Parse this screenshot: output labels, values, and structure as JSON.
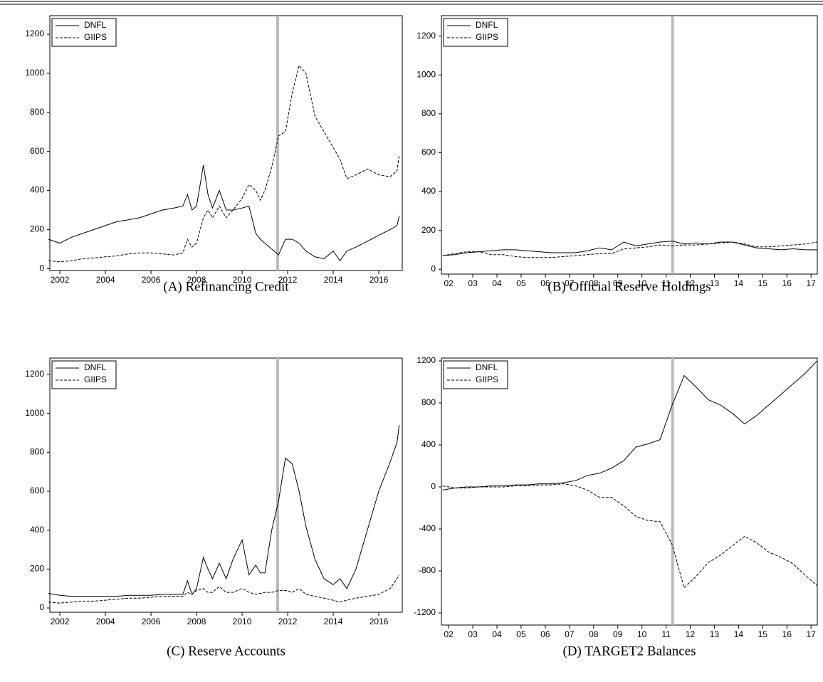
{
  "chart_data": [
    {
      "type": "line",
      "title": "(A) Refinancing Credit",
      "x": [
        2001.5,
        2002,
        2002.5,
        2003,
        2003.5,
        2004,
        2004.5,
        2005,
        2005.5,
        2006,
        2006.5,
        2007,
        2007.4,
        2007.6,
        2007.8,
        2008,
        2008.3,
        2008.5,
        2008.7,
        2009,
        2009.3,
        2009.6,
        2010,
        2010.3,
        2010.6,
        2010.8,
        2011,
        2011.3,
        2011.6,
        2011.9,
        2012.2,
        2012.5,
        2012.8,
        2013.2,
        2013.6,
        2014,
        2014.3,
        2014.6,
        2015,
        2015.5,
        2016,
        2016.5,
        2016.8,
        2016.9
      ],
      "series": [
        {
          "name": "DNFL",
          "color": "#000000",
          "style": "solid",
          "values": [
            150,
            130,
            160,
            180,
            200,
            220,
            240,
            250,
            260,
            280,
            300,
            310,
            320,
            380,
            300,
            320,
            530,
            380,
            310,
            400,
            300,
            300,
            310,
            320,
            180,
            150,
            130,
            100,
            70,
            150,
            150,
            130,
            90,
            60,
            50,
            90,
            40,
            90,
            110,
            140,
            170,
            200,
            220,
            270
          ]
        },
        {
          "name": "GIIPS",
          "color": "#000000",
          "style": "dashed",
          "values": [
            40,
            35,
            40,
            50,
            55,
            60,
            65,
            75,
            80,
            80,
            75,
            70,
            80,
            150,
            110,
            130,
            260,
            300,
            260,
            320,
            260,
            300,
            360,
            430,
            400,
            350,
            400,
            520,
            680,
            700,
            900,
            1040,
            1000,
            780,
            700,
            620,
            560,
            460,
            480,
            510,
            480,
            470,
            500,
            580
          ]
        }
      ],
      "xlim": [
        2001.56,
        2017.03
      ],
      "ylim": [
        -10,
        1295
      ],
      "xticks": [
        2002,
        2004,
        2006,
        2008,
        2010,
        2012,
        2014,
        2016
      ],
      "yticks": [
        0,
        200,
        400,
        600,
        800,
        1000,
        1200
      ],
      "vline": 2011.56,
      "legend": "upper-left"
    },
    {
      "type": "line",
      "title": "(B) Official Reserve Holdings",
      "x": [
        2002.25,
        2002.75,
        2003.25,
        2003.75,
        2004.25,
        2004.75,
        2005.25,
        2005.75,
        2006.25,
        2006.75,
        2007.25,
        2007.75,
        2008.25,
        2008.75,
        2009.25,
        2009.75,
        2010.25,
        2010.75,
        2011.25,
        2011.75,
        2012.25,
        2012.75,
        2013.25,
        2013.75,
        2014.25,
        2014.75,
        2015.25,
        2015.75,
        2016.25,
        2016.75,
        2017.25,
        2017.75
      ],
      "series": [
        {
          "name": "DNFL",
          "color": "#000000",
          "style": "solid",
          "values": [
            70,
            75,
            85,
            90,
            95,
            100,
            100,
            95,
            90,
            85,
            85,
            85,
            95,
            110,
            100,
            140,
            120,
            130,
            140,
            145,
            130,
            135,
            130,
            140,
            140,
            125,
            110,
            105,
            100,
            105,
            100,
            100
          ]
        },
        {
          "name": "GIIPS",
          "color": "#000000",
          "style": "dashed",
          "values": [
            70,
            80,
            90,
            90,
            75,
            75,
            65,
            60,
            60,
            60,
            65,
            70,
            75,
            80,
            80,
            105,
            110,
            115,
            125,
            120,
            125,
            125,
            130,
            135,
            140,
            130,
            115,
            115,
            120,
            125,
            130,
            140
          ]
        }
      ],
      "xlim": [
        2002.2,
        2017.76
      ],
      "ylim": [
        -25,
        1305
      ],
      "xticks": [
        {
          "value": 2002.5,
          "label": "02"
        },
        {
          "value": 2003.5,
          "label": "03"
        },
        {
          "value": 2004.5,
          "label": "04"
        },
        {
          "value": 2005.5,
          "label": "05"
        },
        {
          "value": 2006.5,
          "label": "06"
        },
        {
          "value": 2007.5,
          "label": "07"
        },
        {
          "value": 2008.5,
          "label": "08"
        },
        {
          "value": 2009.5,
          "label": "09"
        },
        {
          "value": 2010.5,
          "label": "10"
        },
        {
          "value": 2011.5,
          "label": "11"
        },
        {
          "value": 2012.5,
          "label": "12"
        },
        {
          "value": 2013.5,
          "label": "13"
        },
        {
          "value": 2014.5,
          "label": "14"
        },
        {
          "value": 2015.5,
          "label": "15"
        },
        {
          "value": 2016.5,
          "label": "16"
        },
        {
          "value": 2017.5,
          "label": "17"
        }
      ],
      "yticks": [
        0,
        200,
        400,
        600,
        800,
        1000,
        1200
      ],
      "vline": 2011.77,
      "legend": "upper-left"
    },
    {
      "type": "line",
      "title": "(C) Reserve Accounts",
      "x": [
        2001.5,
        2002,
        2002.5,
        2003,
        2003.5,
        2004,
        2004.5,
        2005,
        2005.5,
        2006,
        2006.5,
        2007,
        2007.4,
        2007.6,
        2007.8,
        2008,
        2008.3,
        2008.5,
        2008.7,
        2009,
        2009.3,
        2009.6,
        2010,
        2010.3,
        2010.6,
        2010.8,
        2011,
        2011.3,
        2011.6,
        2011.9,
        2012.2,
        2012.5,
        2012.8,
        2013.2,
        2013.6,
        2014,
        2014.3,
        2014.6,
        2015,
        2015.5,
        2016,
        2016.5,
        2016.8,
        2016.9
      ],
      "series": [
        {
          "name": "DNFL",
          "color": "#000000",
          "style": "solid",
          "values": [
            75,
            65,
            60,
            60,
            60,
            60,
            60,
            65,
            65,
            65,
            70,
            70,
            70,
            140,
            70,
            100,
            260,
            200,
            150,
            230,
            150,
            250,
            350,
            170,
            220,
            180,
            180,
            400,
            550,
            770,
            740,
            600,
            420,
            250,
            150,
            120,
            150,
            100,
            200,
            400,
            600,
            750,
            850,
            940
          ]
        },
        {
          "name": "GIIPS",
          "color": "#000000",
          "style": "dashed",
          "values": [
            30,
            25,
            30,
            35,
            35,
            40,
            45,
            50,
            50,
            55,
            60,
            60,
            60,
            80,
            70,
            90,
            100,
            80,
            80,
            110,
            80,
            80,
            100,
            80,
            70,
            75,
            80,
            80,
            90,
            90,
            80,
            100,
            70,
            60,
            50,
            40,
            30,
            40,
            50,
            60,
            70,
            100,
            150,
            170
          ]
        }
      ],
      "xlim": [
        2001.56,
        2017.03
      ],
      "ylim": [
        -22,
        1284
      ],
      "xticks": [
        2002,
        2004,
        2006,
        2008,
        2010,
        2012,
        2014,
        2016
      ],
      "yticks": [
        0,
        200,
        400,
        600,
        800,
        1000,
        1200
      ],
      "vline": 2011.56,
      "legend": "upper-left"
    },
    {
      "type": "line",
      "title": "(D) TARGET2 Balances",
      "x": [
        2002.25,
        2002.75,
        2003.25,
        2003.75,
        2004.25,
        2004.75,
        2005.25,
        2005.75,
        2006.25,
        2006.75,
        2007.25,
        2007.75,
        2008.25,
        2008.75,
        2009.25,
        2009.75,
        2010.25,
        2010.75,
        2011.25,
        2011.75,
        2012.25,
        2012.75,
        2013.25,
        2013.75,
        2014.25,
        2014.75,
        2015.25,
        2015.75,
        2016.25,
        2016.75,
        2017.25,
        2017.75
      ],
      "series": [
        {
          "name": "DNFL",
          "color": "#000000",
          "style": "solid",
          "values": [
            -30,
            -10,
            0,
            0,
            10,
            10,
            20,
            20,
            30,
            30,
            40,
            60,
            110,
            130,
            180,
            250,
            380,
            410,
            450,
            780,
            1060,
            950,
            830,
            780,
            700,
            600,
            680,
            780,
            880,
            980,
            1080,
            1200
          ]
        },
        {
          "name": "GIIPS",
          "color": "#000000",
          "style": "dashed",
          "values": [
            10,
            -10,
            -10,
            0,
            0,
            0,
            10,
            10,
            20,
            20,
            30,
            10,
            -30,
            -100,
            -100,
            -180,
            -280,
            -320,
            -330,
            -550,
            -960,
            -850,
            -720,
            -650,
            -560,
            -470,
            -530,
            -620,
            -670,
            -730,
            -840,
            -940
          ]
        }
      ],
      "xlim": [
        2002.2,
        2017.76
      ],
      "ylim": [
        -1315,
        1227
      ],
      "xticks": [
        {
          "value": 2002.5,
          "label": "02"
        },
        {
          "value": 2003.5,
          "label": "03"
        },
        {
          "value": 2004.5,
          "label": "04"
        },
        {
          "value": 2005.5,
          "label": "05"
        },
        {
          "value": 2006.5,
          "label": "06"
        },
        {
          "value": 2007.5,
          "label": "07"
        },
        {
          "value": 2008.5,
          "label": "08"
        },
        {
          "value": 2009.5,
          "label": "09"
        },
        {
          "value": 2010.5,
          "label": "10"
        },
        {
          "value": 2011.5,
          "label": "11"
        },
        {
          "value": 2012.5,
          "label": "12"
        },
        {
          "value": 2013.5,
          "label": "13"
        },
        {
          "value": 2014.5,
          "label": "14"
        },
        {
          "value": 2015.5,
          "label": "15"
        },
        {
          "value": 2016.5,
          "label": "16"
        },
        {
          "value": 2017.5,
          "label": "17"
        }
      ],
      "yticks": [
        -1200,
        -800,
        -400,
        0,
        400,
        800,
        1200
      ],
      "vline": 2011.77,
      "legend": "upper-left"
    }
  ]
}
